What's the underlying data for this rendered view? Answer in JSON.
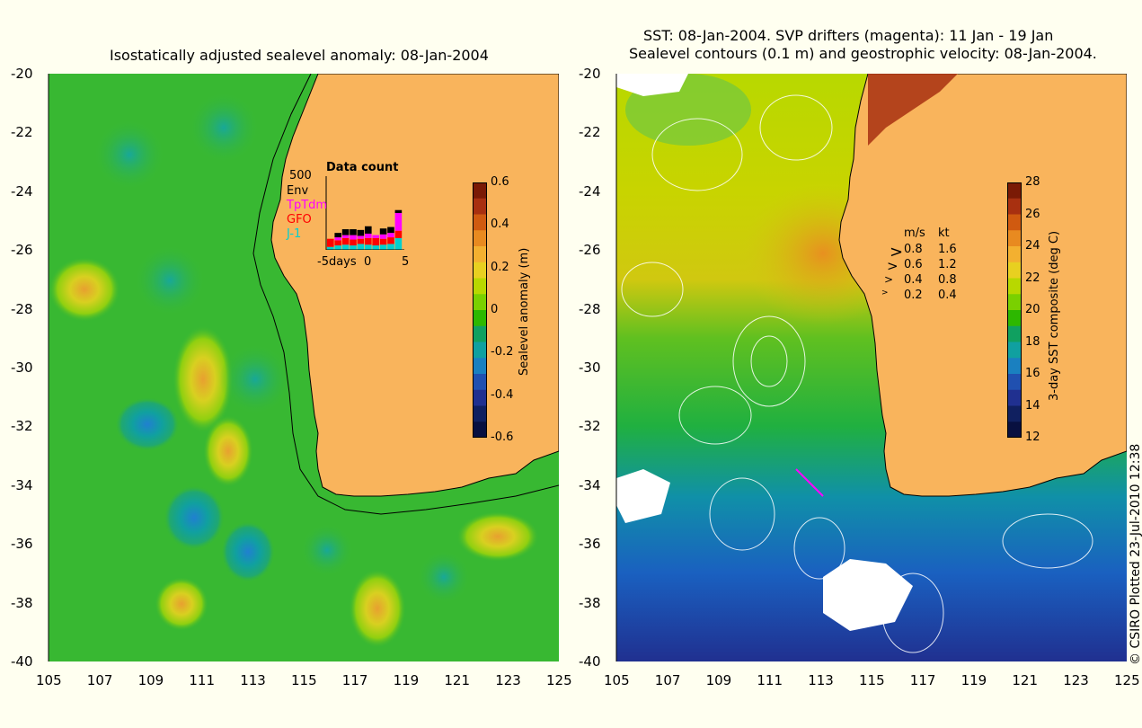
{
  "left_panel": {
    "title": "Isostatically adjusted sealevel anomaly: 08-Jan-2004",
    "y_ticks": [
      "-20",
      "-22",
      "-24",
      "-26",
      "-28",
      "-30",
      "-32",
      "-34",
      "-36",
      "-38",
      "-40"
    ],
    "x_ticks": [
      "105",
      "107",
      "109",
      "111",
      "113",
      "115",
      "117",
      "119",
      "121",
      "123",
      "125"
    ],
    "colorbar": {
      "label": "Sealevel anomaly (m)",
      "ticks": [
        "0.6",
        "0.4",
        "0.2",
        "0",
        "-0.2",
        "-0.4",
        "-0.6"
      ],
      "colors": [
        "#7a1a05",
        "#a83010",
        "#d05a10",
        "#e88a20",
        "#f3b030",
        "#e8d020",
        "#b8d800",
        "#7ad000",
        "#2db800",
        "#10a060",
        "#10a0a0",
        "#1a80c0",
        "#2050b0",
        "#203090",
        "#102060",
        "#081040"
      ]
    },
    "inset": {
      "title": "Data count",
      "ymax_label": "500",
      "series": [
        "Env",
        "TpTdm",
        "GFO",
        "J-1"
      ],
      "series_colors": [
        "#000000",
        "#ff00ff",
        "#ff0000",
        "#00d0d0"
      ],
      "x_labels": [
        "-5days",
        "0",
        "5"
      ],
      "x_days": [
        -5,
        -4,
        -3,
        -2,
        -1,
        0,
        1,
        2,
        3,
        4
      ],
      "stacks": [
        {
          "J-1": 20,
          "GFO": 55,
          "TpTdm": 0,
          "Env": 0
        },
        {
          "J-1": 30,
          "GFO": 35,
          "TpTdm": 20,
          "Env": 30
        },
        {
          "J-1": 35,
          "GFO": 45,
          "TpTdm": 20,
          "Env": 40
        },
        {
          "J-1": 30,
          "GFO": 40,
          "TpTdm": 30,
          "Env": 40
        },
        {
          "J-1": 40,
          "GFO": 35,
          "TpTdm": 20,
          "Env": 40
        },
        {
          "J-1": 35,
          "GFO": 45,
          "TpTdm": 30,
          "Env": 50
        },
        {
          "J-1": 30,
          "GFO": 50,
          "TpTdm": 20,
          "Env": 0
        },
        {
          "J-1": 35,
          "GFO": 40,
          "TpTdm": 30,
          "Env": 40
        },
        {
          "J-1": 40,
          "GFO": 45,
          "TpTdm": 30,
          "Env": 40
        },
        {
          "J-1": 80,
          "GFO": 50,
          "TpTdm": 120,
          "Env": 20
        }
      ]
    }
  },
  "right_panel": {
    "title_line1": "SST: 08-Jan-2004. SVP drifters (magenta): 11 Jan - 19 Jan",
    "title_line2": "Sealevel contours (0.1 m) and geostrophic velocity: 08-Jan-2004.",
    "y_ticks": [
      "-20",
      "-22",
      "-24",
      "-26",
      "-28",
      "-30",
      "-32",
      "-34",
      "-36",
      "-38",
      "-40"
    ],
    "x_ticks": [
      "105",
      "107",
      "109",
      "111",
      "113",
      "115",
      "117",
      "119",
      "121",
      "123",
      "125"
    ],
    "colorbar": {
      "label": "3-day SST composite (deg C)",
      "ticks": [
        "28",
        "26",
        "24",
        "22",
        "20",
        "18",
        "16",
        "14",
        "12"
      ],
      "colors": [
        "#7a1a05",
        "#a83010",
        "#d05a10",
        "#e88a20",
        "#f3b030",
        "#e8d020",
        "#b8d800",
        "#7ad000",
        "#2db800",
        "#10a060",
        "#10a0a0",
        "#1a80c0",
        "#2050b0",
        "#203090",
        "#102060",
        "#081040"
      ]
    },
    "speed_legend": {
      "header_ms": "m/s",
      "header_kt": "kt",
      "rows": [
        {
          "ms": "0.8",
          "kt": "1.6"
        },
        {
          "ms": "0.6",
          "kt": "1.2"
        },
        {
          "ms": "0.4",
          "kt": "0.8"
        },
        {
          "ms": "0.2",
          "kt": "0.4"
        }
      ]
    }
  },
  "credit": "© CSIRO Plotted 23-Jul-2010 12:38",
  "colors": {
    "background": "#fffff0",
    "land": "#f9b45c",
    "ocean_left": "#38b832",
    "coast": "#000000"
  }
}
